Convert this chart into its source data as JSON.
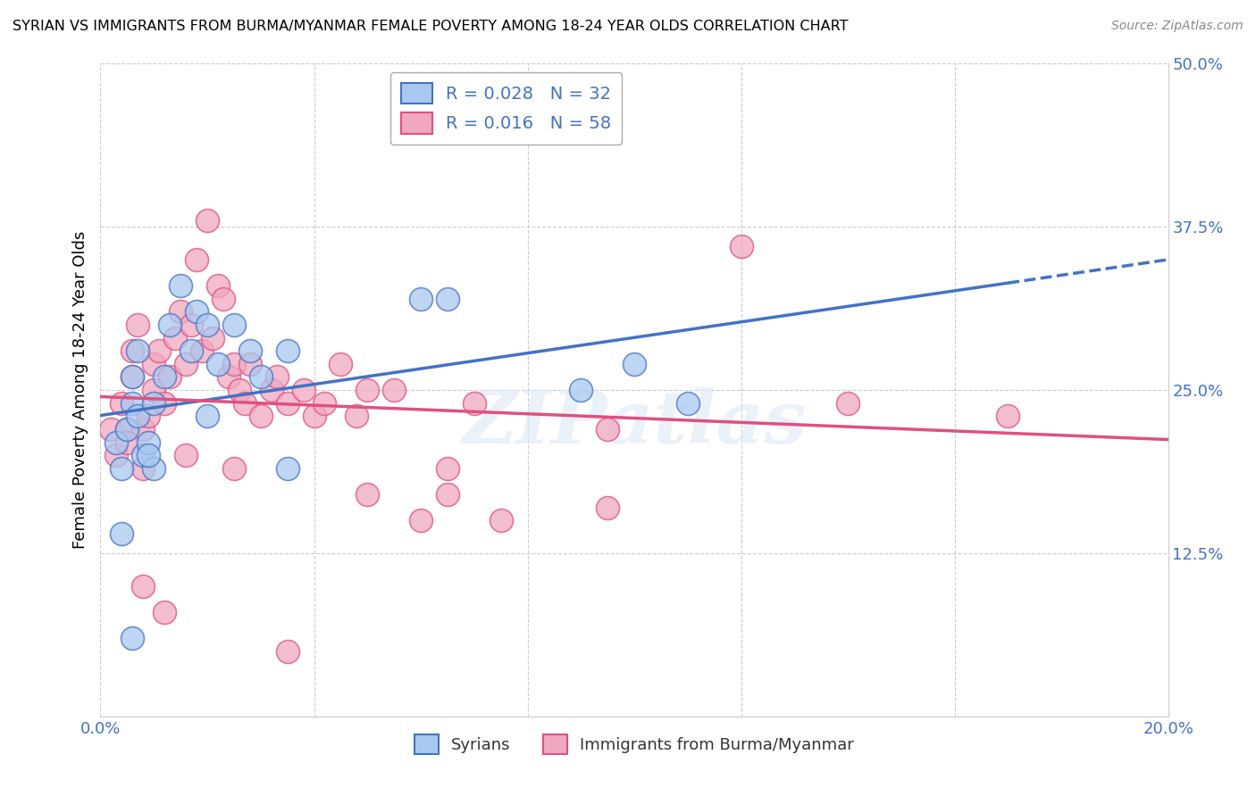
{
  "title": "SYRIAN VS IMMIGRANTS FROM BURMA/MYANMAR FEMALE POVERTY AMONG 18-24 YEAR OLDS CORRELATION CHART",
  "source": "Source: ZipAtlas.com",
  "ylabel": "Female Poverty Among 18-24 Year Olds",
  "x_min": 0.0,
  "x_max": 0.2,
  "y_min": 0.0,
  "y_max": 0.5,
  "syrian_color": "#a8c8f0",
  "burma_color": "#f0a8c0",
  "syrian_line_color": "#4472c4",
  "burma_line_color": "#e05080",
  "legend_label1": "Syrians",
  "legend_label2": "Immigrants from Burma/Myanmar",
  "watermark": "ZIPatlas",
  "background_color": "#ffffff",
  "grid_color": "#cccccc",
  "title_color": "#000000",
  "tick_color": "#4472c4",
  "syrian_x": [
    0.003,
    0.004,
    0.005,
    0.006,
    0.006,
    0.007,
    0.007,
    0.008,
    0.009,
    0.01,
    0.01,
    0.012,
    0.013,
    0.015,
    0.017,
    0.018,
    0.02,
    0.022,
    0.025,
    0.028,
    0.03,
    0.035,
    0.06,
    0.065,
    0.1,
    0.11,
    0.004,
    0.006,
    0.009,
    0.02,
    0.035,
    0.09
  ],
  "syrian_y": [
    0.21,
    0.19,
    0.22,
    0.24,
    0.26,
    0.23,
    0.28,
    0.2,
    0.21,
    0.24,
    0.19,
    0.26,
    0.3,
    0.33,
    0.28,
    0.31,
    0.3,
    0.27,
    0.3,
    0.28,
    0.26,
    0.28,
    0.32,
    0.32,
    0.27,
    0.24,
    0.14,
    0.06,
    0.2,
    0.23,
    0.19,
    0.25
  ],
  "burma_x": [
    0.002,
    0.003,
    0.004,
    0.005,
    0.006,
    0.006,
    0.007,
    0.008,
    0.008,
    0.009,
    0.01,
    0.01,
    0.011,
    0.012,
    0.013,
    0.014,
    0.015,
    0.016,
    0.017,
    0.018,
    0.019,
    0.02,
    0.021,
    0.022,
    0.023,
    0.024,
    0.025,
    0.026,
    0.027,
    0.028,
    0.03,
    0.032,
    0.033,
    0.035,
    0.038,
    0.04,
    0.042,
    0.045,
    0.048,
    0.05,
    0.055,
    0.06,
    0.065,
    0.07,
    0.075,
    0.095,
    0.12,
    0.14,
    0.17,
    0.005,
    0.008,
    0.012,
    0.016,
    0.025,
    0.035,
    0.05,
    0.065,
    0.095
  ],
  "burma_y": [
    0.22,
    0.2,
    0.24,
    0.22,
    0.26,
    0.28,
    0.3,
    0.22,
    0.19,
    0.23,
    0.25,
    0.27,
    0.28,
    0.24,
    0.26,
    0.29,
    0.31,
    0.27,
    0.3,
    0.35,
    0.28,
    0.38,
    0.29,
    0.33,
    0.32,
    0.26,
    0.27,
    0.25,
    0.24,
    0.27,
    0.23,
    0.25,
    0.26,
    0.24,
    0.25,
    0.23,
    0.24,
    0.27,
    0.23,
    0.25,
    0.25,
    0.15,
    0.17,
    0.24,
    0.15,
    0.22,
    0.36,
    0.24,
    0.23,
    0.21,
    0.1,
    0.08,
    0.2,
    0.19,
    0.05,
    0.17,
    0.19,
    0.16
  ]
}
